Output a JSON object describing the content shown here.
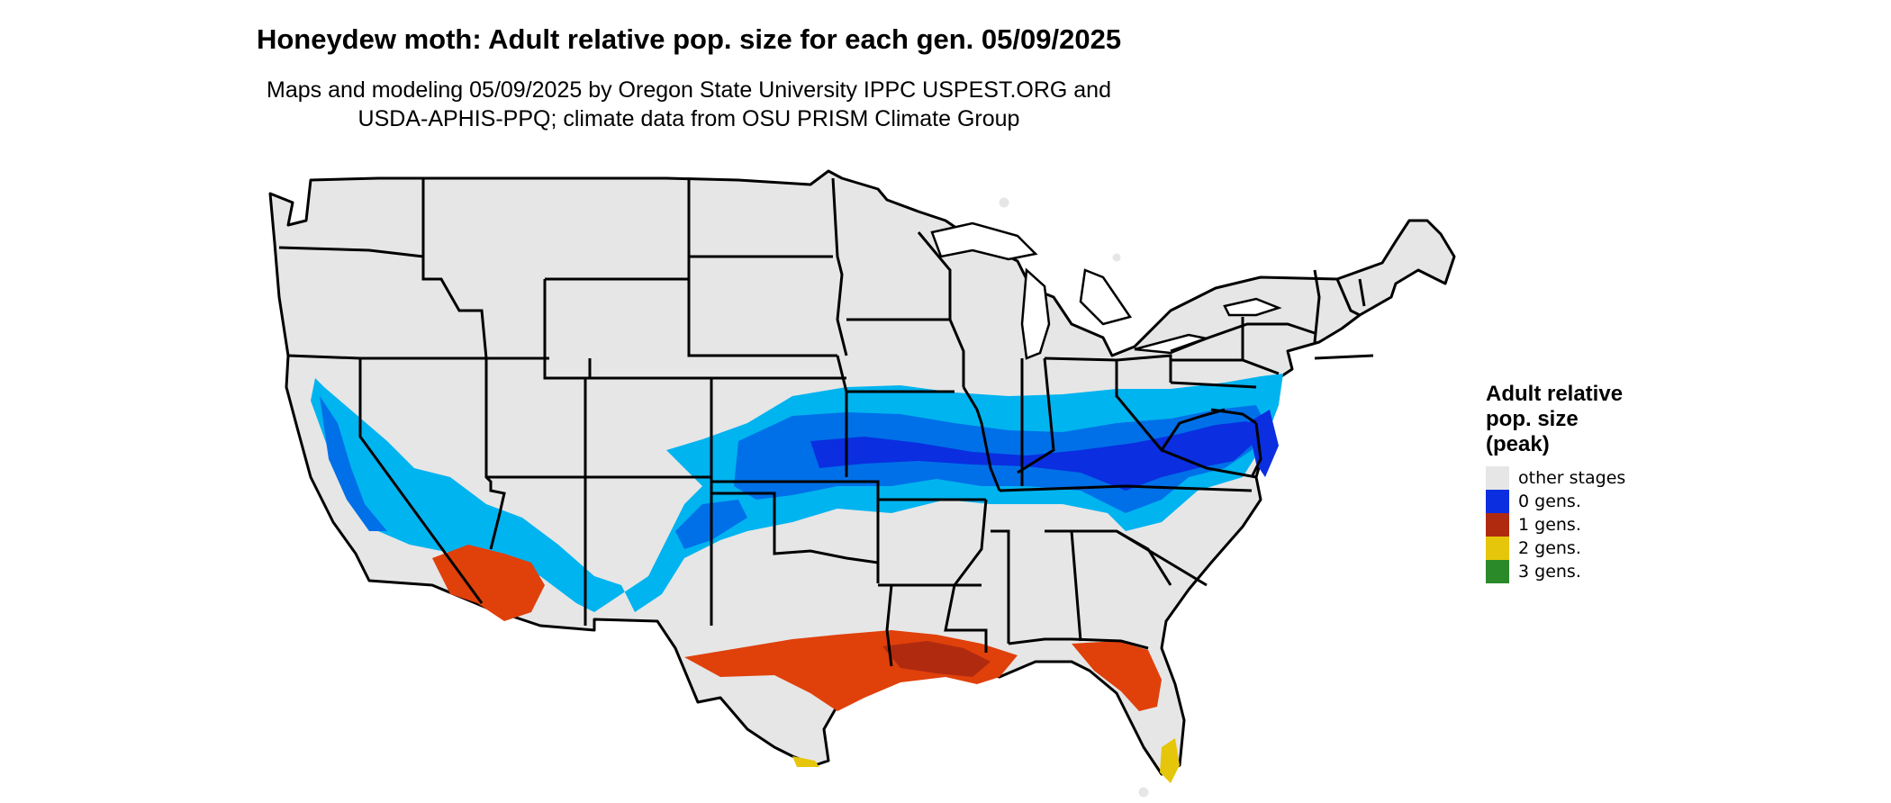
{
  "title": "Honeydew moth: Adult relative pop. size for each gen. 05/09/2025",
  "subtitle_line1": "Maps and modeling 05/09/2025 by Oregon State University IPPC USPEST.ORG and",
  "subtitle_line2": "USDA-APHIS-PPQ; climate data from OSU PRISM Climate Group",
  "map": {
    "region": "Contiguous United States",
    "base_color": "#e6e6e6",
    "border_color": "#000000"
  },
  "legend": {
    "title_line1": "Adult relative",
    "title_line2": "pop. size",
    "title_line3": "(peak)",
    "items": [
      {
        "label": "other stages",
        "color": "#e6e6e6"
      },
      {
        "label": "0 gens.",
        "color": "#0a2ee0"
      },
      {
        "label": "1 gens.",
        "color": "#b02a10"
      },
      {
        "label": "2 gens.",
        "color": "#e6c60a"
      },
      {
        "label": "3 gens.",
        "color": "#2a8a2a"
      }
    ]
  }
}
